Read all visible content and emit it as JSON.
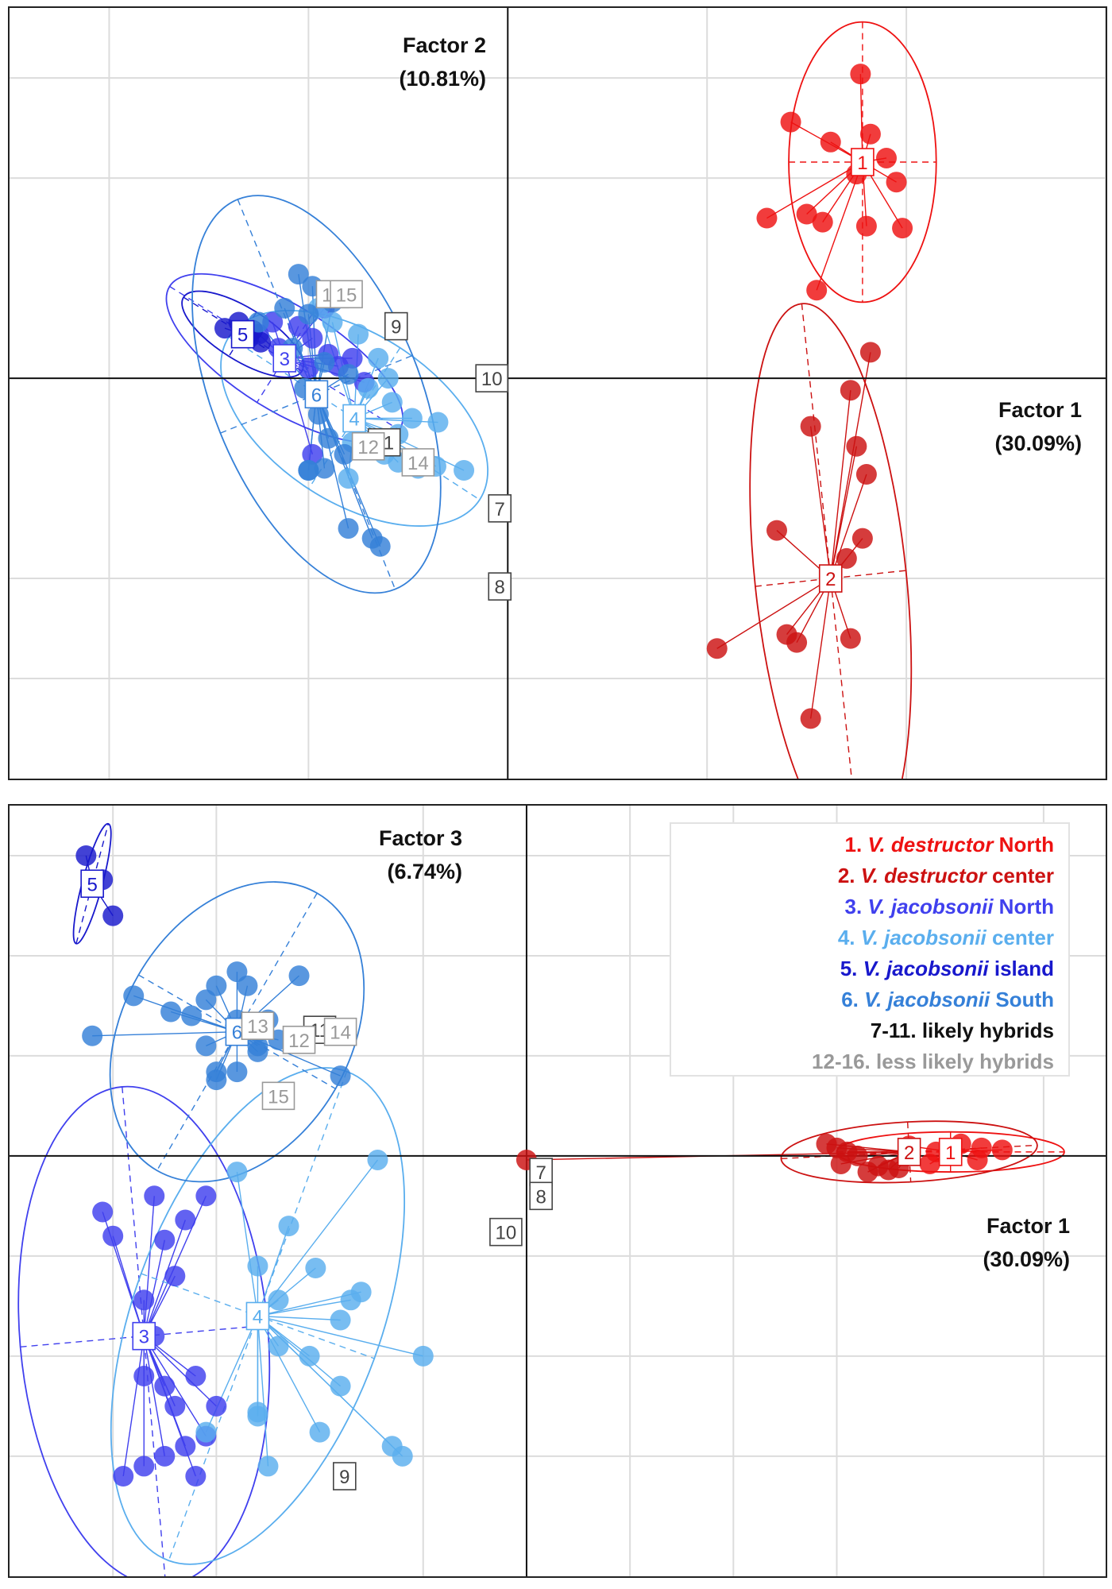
{
  "chart_data": [
    {
      "type": "scatter",
      "x_axis_label": "Factor 1",
      "x_axis_pct": "(30.09%)",
      "y_axis_label": "Factor 2",
      "y_axis_pct": "(10.81%)",
      "xlim": [
        -2.5,
        3.0
      ],
      "ylim": [
        -2.0,
        1.85
      ],
      "grid": true,
      "series": [
        {
          "id": "1",
          "color": "#ee1111",
          "centroid": [
            1.78,
            1.08
          ],
          "ellipse": {
            "rx": 0.37,
            "ry": 0.7,
            "angle": 0
          },
          "points": [
            [
              1.77,
              1.52
            ],
            [
              1.42,
              1.28
            ],
            [
              1.62,
              1.18
            ],
            [
              1.82,
              1.22
            ],
            [
              1.9,
              1.1
            ],
            [
              1.75,
              1.02
            ],
            [
              1.95,
              0.98
            ],
            [
              1.3,
              0.8
            ],
            [
              1.5,
              0.82
            ],
            [
              1.58,
              0.78
            ],
            [
              1.8,
              0.76
            ],
            [
              1.98,
              0.75
            ],
            [
              1.55,
              0.44
            ]
          ]
        },
        {
          "id": "2",
          "color": "#cc1111",
          "centroid": [
            1.62,
            -1.0
          ],
          "ellipse": {
            "rx": 0.38,
            "ry": 1.38,
            "angle": -6
          },
          "points": [
            [
              1.82,
              0.13
            ],
            [
              1.72,
              -0.06
            ],
            [
              1.52,
              -0.24
            ],
            [
              1.75,
              -0.34
            ],
            [
              1.8,
              -0.48
            ],
            [
              1.35,
              -0.76
            ],
            [
              1.78,
              -0.8
            ],
            [
              1.7,
              -0.9
            ],
            [
              1.05,
              -1.35
            ],
            [
              1.4,
              -1.28
            ],
            [
              1.45,
              -1.32
            ],
            [
              1.72,
              -1.3
            ],
            [
              1.52,
              -1.7
            ]
          ]
        },
        {
          "id": "3",
          "color": "#4040ee",
          "centroid": [
            -1.12,
            0.1
          ],
          "ellipse": {
            "rx": 0.68,
            "ry": 0.26,
            "angle": 32
          },
          "points": [
            [
              -1.18,
              0.28
            ],
            [
              -1.05,
              0.26
            ],
            [
              -1.25,
              0.22
            ],
            [
              -0.98,
              0.2
            ],
            [
              -1.15,
              0.15
            ],
            [
              -0.9,
              0.12
            ],
            [
              -0.78,
              0.1
            ],
            [
              -0.85,
              0.06
            ],
            [
              -1.0,
              0.05
            ],
            [
              -0.72,
              -0.02
            ],
            [
              -0.98,
              -0.38
            ],
            [
              -0.92,
              0.35
            ]
          ]
        },
        {
          "id": "4",
          "color": "#5aaeee",
          "centroid": [
            -0.77,
            -0.2
          ],
          "ellipse": {
            "rx": 0.75,
            "ry": 0.42,
            "angle": 33
          },
          "points": [
            [
              -0.95,
              0.35
            ],
            [
              -0.88,
              0.28
            ],
            [
              -0.75,
              0.22
            ],
            [
              -0.65,
              0.1
            ],
            [
              -0.6,
              0.0
            ],
            [
              -0.7,
              -0.05
            ],
            [
              -0.58,
              -0.12
            ],
            [
              -0.48,
              -0.2
            ],
            [
              -0.78,
              -0.32
            ],
            [
              -0.62,
              -0.38
            ],
            [
              -0.55,
              -0.42
            ],
            [
              -0.45,
              -0.45
            ],
            [
              -0.36,
              -0.44
            ],
            [
              -0.22,
              -0.46
            ],
            [
              -0.35,
              -0.22
            ],
            [
              -0.55,
              -0.28
            ],
            [
              -0.8,
              -0.5
            ]
          ]
        },
        {
          "id": "5",
          "color": "#1818cc",
          "centroid": [
            -1.33,
            0.22
          ],
          "ellipse": {
            "rx": 0.35,
            "ry": 0.13,
            "angle": 32
          },
          "points": [
            [
              -1.42,
              0.25
            ],
            [
              -1.35,
              0.28
            ],
            [
              -1.3,
              0.2
            ],
            [
              -1.28,
              0.24
            ],
            [
              -1.24,
              0.18
            ]
          ]
        },
        {
          "id": "6",
          "color": "#3580d8",
          "centroid": [
            -0.96,
            -0.08
          ],
          "ellipse": {
            "rx": 0.52,
            "ry": 1.05,
            "angle": -22
          },
          "points": [
            [
              -1.05,
              0.52
            ],
            [
              -0.98,
              0.46
            ],
            [
              -0.88,
              0.38
            ],
            [
              -1.12,
              0.35
            ],
            [
              -1.0,
              0.32
            ],
            [
              -1.25,
              0.28
            ],
            [
              -1.08,
              0.15
            ],
            [
              -0.92,
              0.08
            ],
            [
              -0.8,
              0.02
            ],
            [
              -1.02,
              -0.05
            ],
            [
              -0.95,
              -0.18
            ],
            [
              -0.9,
              -0.3
            ],
            [
              -0.82,
              -0.38
            ],
            [
              -0.92,
              -0.45
            ],
            [
              -1.0,
              -0.46
            ],
            [
              -0.8,
              -0.75
            ],
            [
              -0.68,
              -0.8
            ],
            [
              -0.64,
              -0.84
            ],
            [
              -1.0,
              -0.46
            ]
          ]
        }
      ],
      "labels": [
        {
          "text": "7",
          "x": -0.04,
          "y": -0.65,
          "color": "#444444"
        },
        {
          "text": "8",
          "x": -0.04,
          "y": -1.04,
          "color": "#444444"
        },
        {
          "text": "9",
          "x": -0.56,
          "y": 0.26,
          "color": "#444444"
        },
        {
          "text": "10",
          "x": -0.08,
          "y": 0.0,
          "color": "#444444"
        },
        {
          "text": "11",
          "x": -0.62,
          "y": -0.32,
          "color": "#444444"
        },
        {
          "text": "12",
          "x": -0.7,
          "y": -0.34,
          "color": "#999999"
        },
        {
          "text": "13",
          "x": -0.88,
          "y": 0.42,
          "color": "#999999"
        },
        {
          "text": "14",
          "x": -0.45,
          "y": -0.42,
          "color": "#999999"
        },
        {
          "text": "15",
          "x": -0.81,
          "y": 0.42,
          "color": "#999999"
        }
      ]
    },
    {
      "type": "scatter",
      "x_axis_label": "Factor 1",
      "x_axis_pct": "(30.09%)",
      "y_axis_label": "Factor 3",
      "y_axis_pct": "(6.74%)",
      "xlim": [
        -2.5,
        2.8
      ],
      "ylim": [
        -2.1,
        1.75
      ],
      "grid": true,
      "series": [
        {
          "id": "1",
          "color": "#ee1111",
          "centroid": [
            2.05,
            0.02
          ],
          "ellipse": {
            "rx": 0.55,
            "ry": 0.1,
            "angle": 0
          },
          "points": [
            [
              1.85,
              0.05
            ],
            [
              1.98,
              0.02
            ],
            [
              2.1,
              0.06
            ],
            [
              2.2,
              0.04
            ],
            [
              2.3,
              0.03
            ],
            [
              2.18,
              -0.02
            ],
            [
              1.95,
              -0.04
            ]
          ]
        },
        {
          "id": "2",
          "color": "#cc1111",
          "centroid": [
            1.85,
            0.02
          ],
          "ellipse": {
            "rx": 0.62,
            "ry": 0.15,
            "angle": -3
          },
          "points": [
            [
              1.45,
              0.06
            ],
            [
              1.55,
              0.02
            ],
            [
              1.6,
              0.0
            ],
            [
              1.52,
              -0.04
            ],
            [
              1.7,
              -0.05
            ],
            [
              1.75,
              -0.07
            ],
            [
              1.8,
              -0.06
            ],
            [
              1.65,
              -0.08
            ],
            [
              0.0,
              -0.02
            ],
            [
              1.5,
              0.04
            ]
          ]
        },
        {
          "id": "3",
          "color": "#4040ee",
          "centroid": [
            -1.85,
            -0.9
          ],
          "ellipse": {
            "rx": 0.6,
            "ry": 1.25,
            "angle": -5
          },
          "points": [
            [
              -1.55,
              -0.2
            ],
            [
              -1.8,
              -0.2
            ],
            [
              -1.65,
              -0.32
            ],
            [
              -2.05,
              -0.28
            ],
            [
              -2.0,
              -0.4
            ],
            [
              -1.75,
              -0.42
            ],
            [
              -1.7,
              -0.6
            ],
            [
              -1.85,
              -0.72
            ],
            [
              -1.8,
              -0.9
            ],
            [
              -1.6,
              -1.1
            ],
            [
              -1.75,
              -1.15
            ],
            [
              -1.5,
              -1.25
            ],
            [
              -1.65,
              -1.45
            ],
            [
              -1.55,
              -1.4
            ],
            [
              -1.75,
              -1.5
            ],
            [
              -1.85,
              -1.55
            ],
            [
              -1.6,
              -1.6
            ],
            [
              -1.95,
              -1.6
            ],
            [
              -1.7,
              -1.25
            ],
            [
              -1.85,
              -1.1
            ]
          ]
        },
        {
          "id": "4",
          "color": "#5aaeee",
          "centroid": [
            -1.3,
            -0.8
          ],
          "ellipse": {
            "rx": 0.6,
            "ry": 1.3,
            "angle": 20
          },
          "points": [
            [
              -1.4,
              -0.08
            ],
            [
              -1.15,
              -0.35
            ],
            [
              -1.3,
              -0.55
            ],
            [
              -1.02,
              -0.56
            ],
            [
              -1.2,
              -0.72
            ],
            [
              -0.8,
              -0.68
            ],
            [
              -0.85,
              -0.72
            ],
            [
              -0.9,
              -0.82
            ],
            [
              -0.9,
              -1.15
            ],
            [
              -1.05,
              -1.0
            ],
            [
              -1.2,
              -0.95
            ],
            [
              -0.5,
              -1.0
            ],
            [
              -1.3,
              -1.28
            ],
            [
              -0.65,
              -1.45
            ],
            [
              -1.55,
              -1.38
            ],
            [
              -1.25,
              -1.55
            ],
            [
              -0.6,
              -1.5
            ],
            [
              -1.3,
              -1.3
            ],
            [
              -1.0,
              -1.38
            ],
            [
              -0.72,
              -0.02
            ]
          ]
        },
        {
          "id": "5",
          "color": "#1818cc",
          "centroid": [
            -2.1,
            1.36
          ],
          "ellipse": {
            "rx": 0.3,
            "ry": 0.05,
            "angle": -75
          },
          "points": [
            [
              -2.13,
              1.5
            ],
            [
              -2.05,
              1.38
            ],
            [
              -2.0,
              1.2
            ]
          ]
        },
        {
          "id": "6",
          "color": "#3580d8",
          "centroid": [
            -1.4,
            0.62
          ],
          "ellipse": {
            "rx": 0.55,
            "ry": 0.8,
            "angle": 30
          },
          "points": [
            [
              -1.1,
              0.9
            ],
            [
              -1.4,
              0.92
            ],
            [
              -1.5,
              0.85
            ],
            [
              -1.35,
              0.85
            ],
            [
              -1.55,
              0.78
            ],
            [
              -1.9,
              0.8
            ],
            [
              -1.72,
              0.72
            ],
            [
              -1.62,
              0.7
            ],
            [
              -1.4,
              0.68
            ],
            [
              -1.25,
              0.68
            ],
            [
              -1.3,
              0.62
            ],
            [
              -2.1,
              0.6
            ],
            [
              -1.2,
              0.58
            ],
            [
              -1.55,
              0.55
            ],
            [
              -1.3,
              0.55
            ],
            [
              -1.3,
              0.52
            ],
            [
              -1.4,
              0.42
            ],
            [
              -1.5,
              0.38
            ],
            [
              -0.9,
              0.4
            ],
            [
              -1.5,
              0.42
            ]
          ]
        }
      ],
      "labels": [
        {
          "text": "7",
          "x": 0.07,
          "y": -0.08,
          "color": "#444444"
        },
        {
          "text": "8",
          "x": 0.07,
          "y": -0.2,
          "color": "#444444"
        },
        {
          "text": "9",
          "x": -0.88,
          "y": -1.6,
          "color": "#444444"
        },
        {
          "text": "10",
          "x": -0.1,
          "y": -0.38,
          "color": "#444444"
        },
        {
          "text": "11",
          "x": -1.0,
          "y": 0.63,
          "color": "#444444"
        },
        {
          "text": "12",
          "x": -1.1,
          "y": 0.58,
          "color": "#999999"
        },
        {
          "text": "13",
          "x": -1.3,
          "y": 0.65,
          "color": "#999999"
        },
        {
          "text": "14",
          "x": -0.9,
          "y": 0.62,
          "color": "#999999"
        },
        {
          "text": "15",
          "x": -1.2,
          "y": 0.3,
          "color": "#999999"
        }
      ]
    }
  ],
  "legend": [
    {
      "num": "1.",
      "italic": "V. destructor",
      "rest": "North",
      "color": "#ee1111"
    },
    {
      "num": "2.",
      "italic": "V. destructor",
      "rest": "center",
      "color": "#cc1111"
    },
    {
      "num": "3.",
      "italic": "V. jacobsonii",
      "rest": "North",
      "color": "#4040ee"
    },
    {
      "num": "4.",
      "italic": "V. jacobsonii",
      "rest": "center",
      "color": "#5aaeee"
    },
    {
      "num": "5.",
      "italic": "V. jacobsonii",
      "rest": "island",
      "color": "#1818cc"
    },
    {
      "num": "6.",
      "italic": "V. jacobsonii",
      "rest": "South",
      "color": "#3580d8"
    },
    {
      "num": "7-11.",
      "italic": "",
      "rest": "likely hybrids",
      "color": "#111111"
    },
    {
      "num": "12-16.",
      "italic": "",
      "rest": "less likely hybrids",
      "color": "#999999"
    }
  ]
}
